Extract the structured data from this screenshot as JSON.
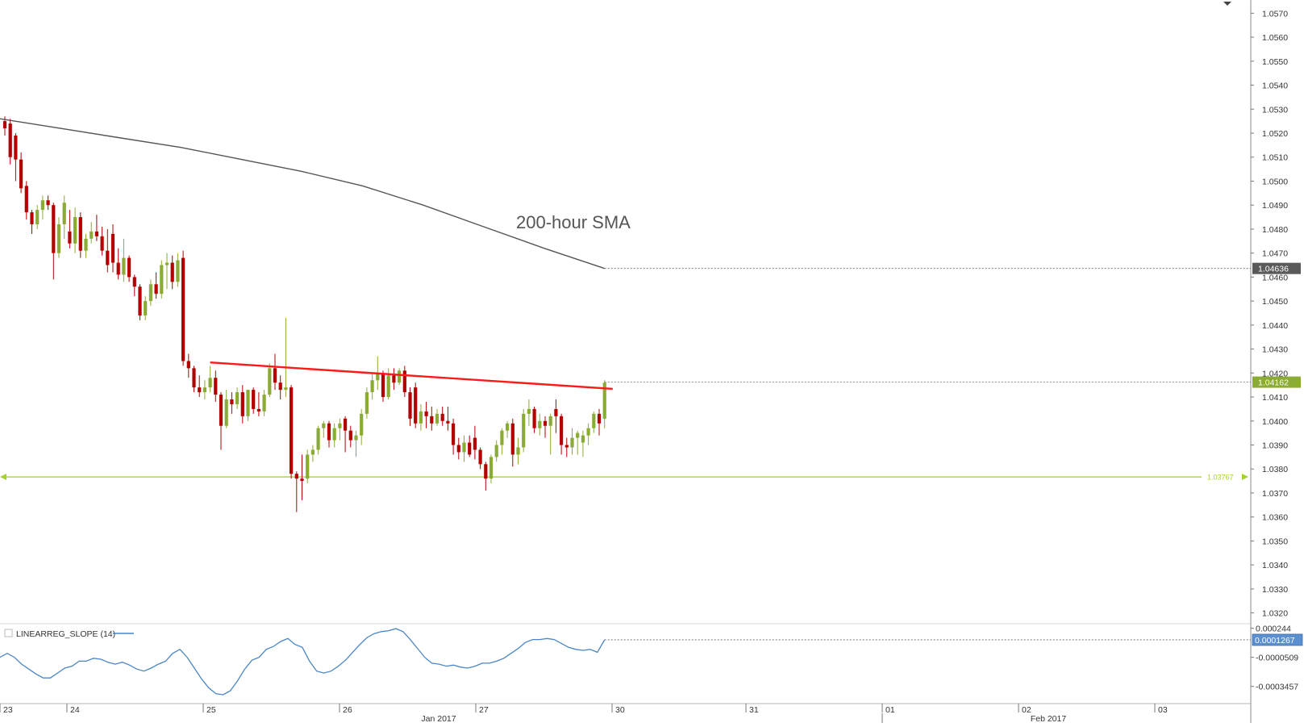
{
  "chart_data": {
    "type": "candlestick",
    "price_axis": {
      "ticks": [
        "1.0570",
        "1.0560",
        "1.0550",
        "1.0540",
        "1.0530",
        "1.0520",
        "1.0510",
        "1.0500",
        "1.0490",
        "1.0480",
        "1.0470",
        "1.0460",
        "1.0450",
        "1.0440",
        "1.0430",
        "1.0420",
        "1.0410",
        "1.0400",
        "1.0390",
        "1.0380",
        "1.0370",
        "1.0360",
        "1.0350",
        "1.0340",
        "1.0330",
        "1.0320"
      ],
      "ylim": [
        1.03155,
        1.05755
      ]
    },
    "price_labels": {
      "sma_value": "1.04636",
      "last_value": "1.04162",
      "horizontal_line_value": "1.03767"
    },
    "colors": {
      "up": "#8aab34",
      "down": "#b30000",
      "sma": "#555555",
      "trendline": "#ff1a1a",
      "hline": "#a6d22e",
      "slope_line": "#4a86c5",
      "axis": "#555555"
    },
    "candles": [
      [
        1.0525,
        1.0527,
        1.0519,
        1.0522
      ],
      [
        1.0524,
        1.0526,
        1.0507,
        1.051
      ],
      [
        1.0519,
        1.052,
        1.05,
        1.0509
      ],
      [
        1.0509,
        1.0512,
        1.0495,
        1.0497
      ],
      [
        1.0498,
        1.05,
        1.0484,
        1.0487
      ],
      [
        1.0487,
        1.0488,
        1.0478,
        1.0482
      ],
      [
        1.0482,
        1.049,
        1.048,
        1.0488
      ],
      [
        1.0488,
        1.0494,
        1.0484,
        1.0492
      ],
      [
        1.0492,
        1.0494,
        1.0488,
        1.049
      ],
      [
        1.049,
        1.0491,
        1.0459,
        1.047
      ],
      [
        1.047,
        1.0485,
        1.0468,
        1.0482
      ],
      [
        1.0482,
        1.0494,
        1.0476,
        1.0491
      ],
      [
        1.0479,
        1.0488,
        1.0472,
        1.0474
      ],
      [
        1.0474,
        1.0489,
        1.047,
        1.0485
      ],
      [
        1.0485,
        1.0487,
        1.0468,
        1.0471
      ],
      [
        1.0471,
        1.0478,
        1.0468,
        1.0476
      ],
      [
        1.0476,
        1.0483,
        1.0474,
        1.0479
      ],
      [
        1.0479,
        1.0486,
        1.0475,
        1.0477
      ],
      [
        1.0477,
        1.0481,
        1.0469,
        1.0471
      ],
      [
        1.0471,
        1.048,
        1.0462,
        1.0465
      ],
      [
        1.0478,
        1.0482,
        1.0462,
        1.0466
      ],
      [
        1.0466,
        1.0472,
        1.0459,
        1.0461
      ],
      [
        1.0461,
        1.0476,
        1.0458,
        1.0468
      ],
      [
        1.0468,
        1.0469,
        1.0458,
        1.046
      ],
      [
        1.046,
        1.0461,
        1.0452,
        1.0456
      ],
      [
        1.0456,
        1.0457,
        1.0442,
        1.0444
      ],
      [
        1.0444,
        1.0452,
        1.0442,
        1.045
      ],
      [
        1.045,
        1.0459,
        1.0448,
        1.0457
      ],
      [
        1.0457,
        1.0462,
        1.0451,
        1.0453
      ],
      [
        1.0453,
        1.0467,
        1.0451,
        1.0465
      ],
      [
        1.0465,
        1.047,
        1.0455,
        1.0466
      ],
      [
        1.0466,
        1.0469,
        1.0455,
        1.0458
      ],
      [
        1.0458,
        1.047,
        1.0456,
        1.0467
      ],
      [
        1.0468,
        1.0471,
        1.0423,
        1.0425
      ],
      [
        1.0425,
        1.0428,
        1.0418,
        1.0422
      ],
      [
        1.0422,
        1.0423,
        1.0412,
        1.0414
      ],
      [
        1.0414,
        1.0419,
        1.041,
        1.0412
      ],
      [
        1.0412,
        1.0417,
        1.0409,
        1.0414
      ],
      [
        1.0414,
        1.0423,
        1.0412,
        1.0418
      ],
      [
        1.0418,
        1.0421,
        1.0408,
        1.0411
      ],
      [
        1.0411,
        1.0412,
        1.0388,
        1.0398
      ],
      [
        1.0398,
        1.0413,
        1.0397,
        1.0409
      ],
      [
        1.0409,
        1.0412,
        1.0403,
        1.0407
      ],
      [
        1.0407,
        1.0414,
        1.0405,
        1.0412
      ],
      [
        1.0412,
        1.0415,
        1.0399,
        1.0402
      ],
      [
        1.0402,
        1.0413,
        1.04,
        1.0413
      ],
      [
        1.0413,
        1.0414,
        1.0403,
        1.0405
      ],
      [
        1.0405,
        1.0412,
        1.0402,
        1.0404
      ],
      [
        1.0404,
        1.0413,
        1.0402,
        1.0411
      ],
      [
        1.0411,
        1.0424,
        1.041,
        1.0422
      ],
      [
        1.0422,
        1.0428,
        1.0413,
        1.0416
      ],
      [
        1.0416,
        1.0419,
        1.0409,
        1.0413
      ],
      [
        1.0413,
        1.0443,
        1.041,
        1.0414
      ],
      [
        1.0414,
        1.0415,
        1.0376,
        1.0378
      ],
      [
        1.0378,
        1.0379,
        1.0362,
        1.0376
      ],
      [
        1.0376,
        1.0386,
        1.0367,
        1.0375
      ],
      [
        1.0376,
        1.0388,
        1.0374,
        1.0386
      ],
      [
        1.0386,
        1.039,
        1.0383,
        1.0388
      ],
      [
        1.0388,
        1.0398,
        1.0386,
        1.0397
      ],
      [
        1.0397,
        1.04,
        1.0393,
        1.0399
      ],
      [
        1.0399,
        1.04,
        1.0389,
        1.0392
      ],
      [
        1.0392,
        1.0399,
        1.0389,
        1.0397
      ],
      [
        1.0397,
        1.0401,
        1.0392,
        1.0399
      ],
      [
        1.0401,
        1.0402,
        1.0387,
        1.0396
      ],
      [
        1.0396,
        1.0398,
        1.0389,
        1.0392
      ],
      [
        1.0392,
        1.0396,
        1.0385,
        1.0394
      ],
      [
        1.0394,
        1.0405,
        1.039,
        1.0403
      ],
      [
        1.0403,
        1.0414,
        1.0401,
        1.0412
      ],
      [
        1.0412,
        1.042,
        1.0409,
        1.0417
      ],
      [
        1.0417,
        1.0427,
        1.0413,
        1.042
      ],
      [
        1.042,
        1.0421,
        1.0408,
        1.041
      ],
      [
        1.041,
        1.0422,
        1.0409,
        1.0419
      ],
      [
        1.0419,
        1.0422,
        1.0413,
        1.0416
      ],
      [
        1.0416,
        1.0422,
        1.0415,
        1.0421
      ],
      [
        1.0421,
        1.0423,
        1.041,
        1.0412
      ],
      [
        1.0412,
        1.0414,
        1.0398,
        1.0401
      ],
      [
        1.0414,
        1.0416,
        1.0397,
        1.0399
      ],
      [
        1.0399,
        1.0407,
        1.0396,
        1.0404
      ],
      [
        1.0404,
        1.0408,
        1.0397,
        1.0402
      ],
      [
        1.0402,
        1.0406,
        1.0396,
        1.0399
      ],
      [
        1.0399,
        1.0405,
        1.0398,
        1.0403
      ],
      [
        1.0403,
        1.0406,
        1.0398,
        1.04
      ],
      [
        1.04,
        1.0406,
        1.0396,
        1.0399
      ],
      [
        1.0399,
        1.0401,
        1.0386,
        1.039
      ],
      [
        1.039,
        1.0393,
        1.0384,
        1.0387
      ],
      [
        1.0387,
        1.0394,
        1.0383,
        1.0391
      ],
      [
        1.0391,
        1.0394,
        1.0385,
        1.0386
      ],
      [
        1.0393,
        1.0398,
        1.0384,
        1.0388
      ],
      [
        1.0388,
        1.0389,
        1.038,
        1.0382
      ],
      [
        1.0382,
        1.0383,
        1.0371,
        1.0376
      ],
      [
        1.0376,
        1.0386,
        1.0374,
        1.0385
      ],
      [
        1.0385,
        1.0392,
        1.0383,
        1.039
      ],
      [
        1.039,
        1.0397,
        1.0386,
        1.0396
      ],
      [
        1.0396,
        1.04,
        1.0393,
        1.0399
      ],
      [
        1.0399,
        1.0401,
        1.0381,
        1.0386
      ],
      [
        1.0386,
        1.0393,
        1.0382,
        1.0389
      ],
      [
        1.0389,
        1.0405,
        1.0387,
        1.0403
      ],
      [
        1.0403,
        1.0409,
        1.0398,
        1.0405
      ],
      [
        1.0405,
        1.0406,
        1.0395,
        1.0397
      ],
      [
        1.0397,
        1.0403,
        1.0394,
        1.04
      ],
      [
        1.04,
        1.0402,
        1.0393,
        1.0398
      ],
      [
        1.0398,
        1.0403,
        1.0386,
        1.0402
      ],
      [
        1.0405,
        1.0409,
        1.0395,
        1.0402
      ],
      [
        1.0402,
        1.0403,
        1.0386,
        1.039
      ],
      [
        1.039,
        1.0393,
        1.0385,
        1.0389
      ],
      [
        1.0389,
        1.0397,
        1.0386,
        1.0393
      ],
      [
        1.0393,
        1.0396,
        1.0386,
        1.0395
      ],
      [
        1.0391,
        1.0396,
        1.0385,
        1.0394
      ],
      [
        1.0394,
        1.0399,
        1.039,
        1.0397
      ],
      [
        1.0397,
        1.0404,
        1.0395,
        1.0403
      ],
      [
        1.0403,
        1.0405,
        1.0394,
        1.0399
      ],
      [
        1.0401,
        1.0417,
        1.0397,
        1.0416
      ]
    ],
    "sma_200": {
      "label": "200-hour SMA",
      "values": [
        1.0526,
        1.0522,
        1.0518,
        1.0514,
        1.0509,
        1.0504,
        1.0498,
        1.049,
        1.0481,
        1.0472,
        1.04636
      ]
    },
    "trendline": {
      "start": [
        38,
        1.04244
      ],
      "end": [
        112.5,
        1.04134
      ]
    },
    "horizontal_line": {
      "value": 1.03767
    },
    "x_axis": {
      "day_labels": [
        "23",
        "24",
        "25",
        "26",
        "27",
        "30",
        "31",
        "01",
        "02",
        "03"
      ],
      "month_labels": [
        "Jan 2017",
        "Feb 2017"
      ]
    },
    "indicator": {
      "name": "LINEARREG_SLOPE (14)",
      "ticks": [
        "0.000244",
        "-0.0000509",
        "-0.0003457"
      ],
      "value_label": "0.0001267",
      "ylim": [
        -0.00052,
        0.00029
      ],
      "values": [
        -5e-05,
        -1e-05,
        -5e-05,
        -0.00012,
        -0.00017,
        -0.00022,
        -0.00026,
        -0.00026,
        -0.00021,
        -0.00016,
        -0.00014,
        -9e-05,
        -9e-05,
        -6e-05,
        -7e-05,
        -0.0001,
        -0.00012,
        -0.0001,
        -0.00013,
        -0.00017,
        -0.00019,
        -0.00016,
        -0.00012,
        -9e-05,
        -1e-05,
        3e-05,
        -5e-05,
        -0.00016,
        -0.00027,
        -0.00036,
        -0.00042,
        -0.00043,
        -0.00039,
        -0.00029,
        -0.00017,
        -8e-05,
        -5e-05,
        3e-05,
        6e-05,
        0.00011,
        0.00014,
        8e-05,
        5e-05,
        -9e-05,
        -0.00019,
        -0.00021,
        -0.00019,
        -0.00014,
        -8e-05,
        0.0,
        8e-05,
        0.00015,
        0.00019,
        0.00021,
        0.00022,
        0.00024,
        0.00021,
        0.00013,
        4e-05,
        -5e-05,
        -0.00011,
        -0.00012,
        -0.00014,
        -0.00013,
        -0.00015,
        -0.00016,
        -0.00014,
        -0.00011,
        -0.00011,
        -9e-05,
        -6e-05,
        -1e-05,
        4e-05,
        0.0001,
        0.00013,
        0.00013,
        0.00014,
        0.00013,
        9e-05,
        5e-05,
        3e-05,
        2e-05,
        3e-05,
        0.0,
        0.0001267
      ]
    }
  }
}
